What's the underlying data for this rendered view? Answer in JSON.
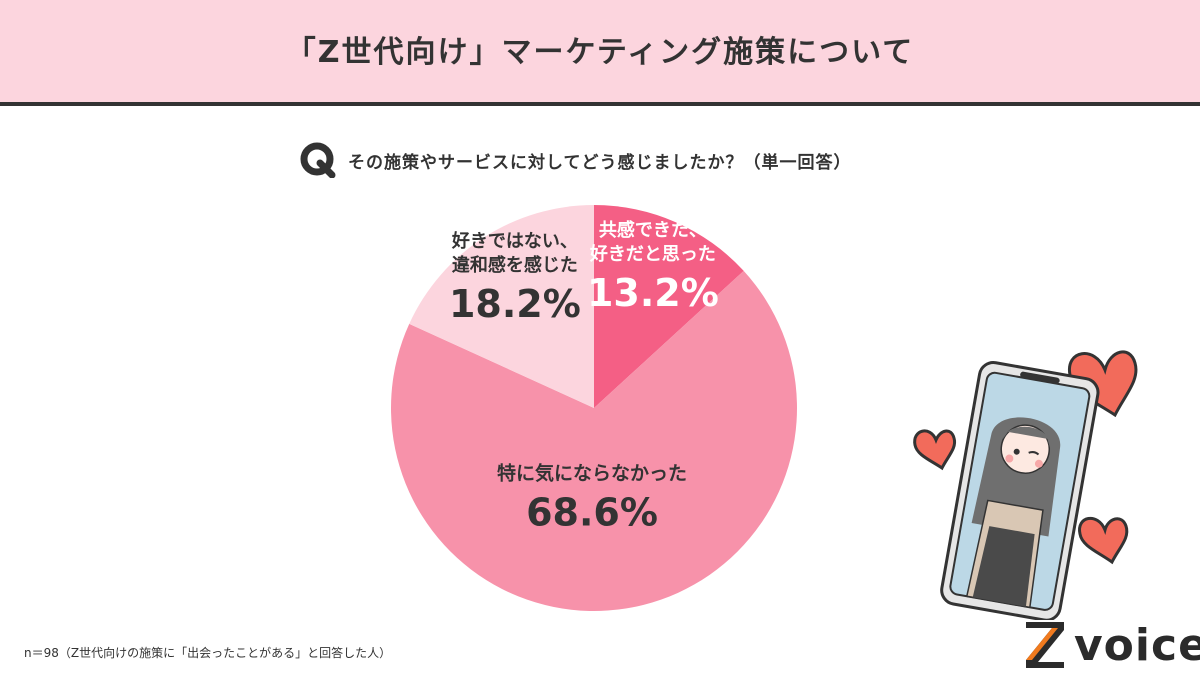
{
  "header": {
    "title": "「Z世代向け」マーケティング施策について"
  },
  "question": {
    "icon": "q-letter-icon",
    "text": "その施策やサービスに対してどう感じましたか？（単一回答）"
  },
  "chart_data": {
    "type": "pie",
    "title": "",
    "start_angle_deg": 0,
    "direction": "clockwise",
    "slices": [
      {
        "label_lines": [
          "共感できた、",
          "好きだと思った"
        ],
        "value": 13.2,
        "value_label": "13.2%",
        "color": "#f45f85",
        "label_color": "#ffffff"
      },
      {
        "label_lines": [
          "特に気にならなかった"
        ],
        "value": 68.6,
        "value_label": "68.6%",
        "color": "#f792aa",
        "label_color": "#333333"
      },
      {
        "label_lines": [
          "好きではない、",
          "違和感を感じた"
        ],
        "value": 18.2,
        "value_label": "18.2%",
        "color": "#fcd5de",
        "label_color": "#333333"
      }
    ]
  },
  "footnote": "n＝98（Z世代向けの施策に「出会ったことがある」と回答した人）",
  "brand": {
    "name": "voice",
    "accent": "#f07a1e"
  },
  "colors": {
    "header_bg": "#fcd5de",
    "text": "#333333"
  }
}
